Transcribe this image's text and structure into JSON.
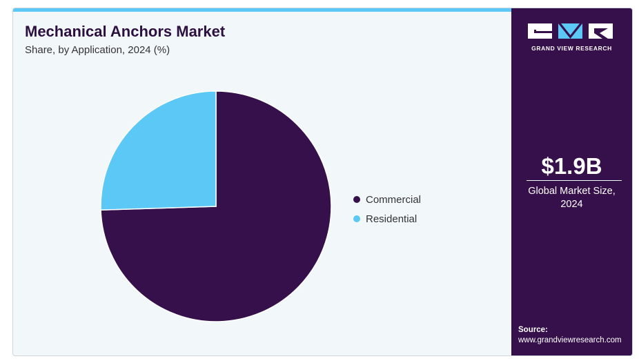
{
  "chart_data": {
    "type": "pie",
    "title": "Mechanical Anchors Market",
    "subtitle": "Share, by Application, 2024 (%)",
    "slices": [
      {
        "label": "Commercial",
        "value": 74.5,
        "color": "#36104a"
      },
      {
        "label": "Residential",
        "value": 25.5,
        "color": "#5bc8f5"
      }
    ],
    "legend_position": "right"
  },
  "sidebar": {
    "brand": "GRAND VIEW RESEARCH",
    "market_size": "$1.9B",
    "market_size_label_line1": "Global Market Size,",
    "market_size_label_line2": "2024",
    "source_label": "Source:",
    "source_url": "www.grandviewresearch.com"
  },
  "colors": {
    "accent": "#5bc8f5",
    "brand_dark": "#36104a",
    "background": "#f2f7fa"
  }
}
